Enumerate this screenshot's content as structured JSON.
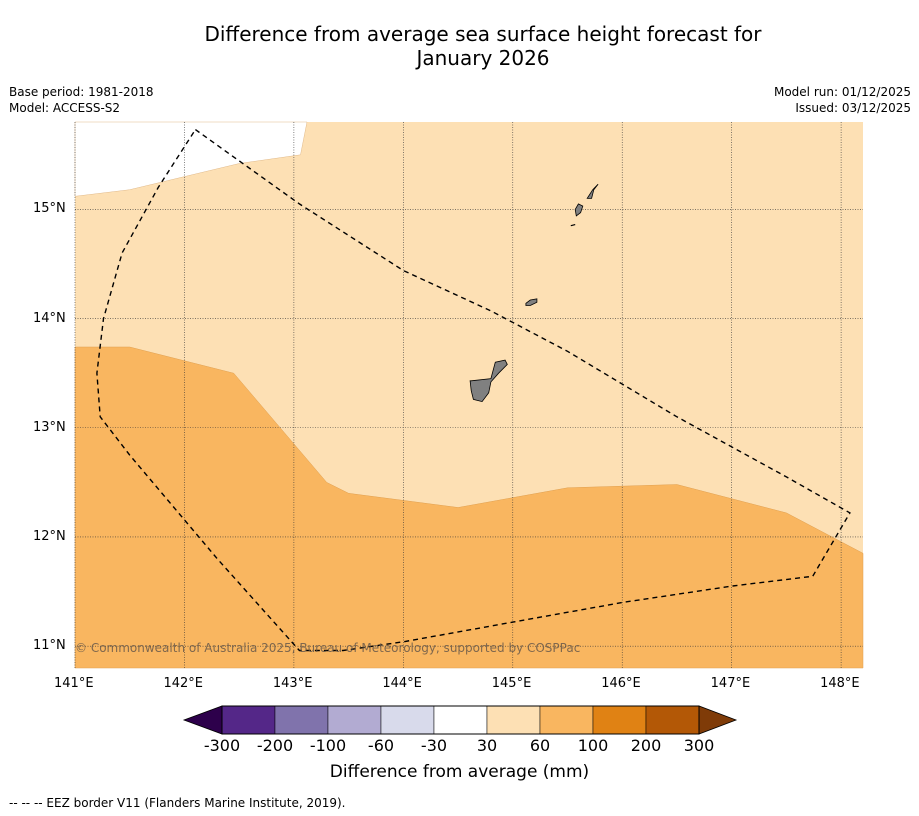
{
  "title_line1": "Difference from average sea surface height forecast for",
  "title_line2": "January 2026",
  "meta_left": {
    "base_period": "Base period: 1981-2018",
    "model": "Model: ACCESS-S2"
  },
  "meta_right": {
    "model_run": "Model run: 01/12/2025",
    "issued": "Issued: 03/12/2025"
  },
  "map": {
    "lon_range": [
      141,
      148.2
    ],
    "lat_range": [
      10.8,
      15.8
    ],
    "lon_ticks": [
      {
        "value": 141,
        "label": "141°E"
      },
      {
        "value": 142,
        "label": "142°E"
      },
      {
        "value": 143,
        "label": "143°E"
      },
      {
        "value": 144,
        "label": "144°E"
      },
      {
        "value": 145,
        "label": "145°E"
      },
      {
        "value": 146,
        "label": "146°E"
      },
      {
        "value": 147,
        "label": "147°E"
      },
      {
        "value": 148,
        "label": "148°E"
      }
    ],
    "lat_ticks": [
      {
        "value": 15,
        "label": "15°N"
      },
      {
        "value": 14,
        "label": "14°N"
      },
      {
        "value": 13,
        "label": "13°N"
      },
      {
        "value": 12,
        "label": "12°N"
      },
      {
        "value": 11,
        "label": "11°N"
      }
    ],
    "colors": {
      "zone_30_60": "#fde0b4",
      "zone_60_100": "#f9b660",
      "land": "#808080",
      "white": "#ffffff"
    },
    "white_region": [
      [
        141,
        15.8
      ],
      [
        141,
        15.12
      ],
      [
        141.5,
        15.18
      ],
      [
        142.5,
        15.42
      ],
      [
        143.06,
        15.5
      ],
      [
        143.12,
        15.8
      ]
    ],
    "zone_60_100_region": [
      [
        141,
        13.74
      ],
      [
        141.5,
        13.74
      ],
      [
        142.45,
        13.5
      ],
      [
        143.3,
        12.5
      ],
      [
        143.5,
        12.4
      ],
      [
        144.5,
        12.27
      ],
      [
        145.5,
        12.45
      ],
      [
        146.5,
        12.48
      ],
      [
        147.5,
        12.22
      ],
      [
        148.2,
        11.85
      ],
      [
        148.2,
        10.8
      ],
      [
        141,
        10.8
      ]
    ],
    "eez_border": [
      [
        142.1,
        15.73
      ],
      [
        143.05,
        15.05
      ],
      [
        144,
        14.44
      ],
      [
        144.8,
        14.07
      ],
      [
        145.5,
        13.7
      ],
      [
        146.5,
        13.1
      ],
      [
        147.5,
        12.55
      ],
      [
        148.08,
        12.22
      ],
      [
        147.74,
        11.64
      ],
      [
        147,
        11.55
      ],
      [
        146,
        11.4
      ],
      [
        145,
        11.22
      ],
      [
        144,
        11.04
      ],
      [
        143.45,
        10.96
      ],
      [
        143.05,
        10.96
      ],
      [
        142.3,
        11.8
      ],
      [
        141.5,
        12.75
      ],
      [
        141.23,
        13.1
      ],
      [
        141.2,
        13.5
      ],
      [
        141.26,
        14
      ],
      [
        141.43,
        14.6
      ],
      [
        141.76,
        15.2
      ],
      [
        142.1,
        15.73
      ]
    ],
    "islands": [
      {
        "name": "guam",
        "points": [
          [
            144.62,
            13.43
          ],
          [
            144.8,
            13.45
          ],
          [
            144.84,
            13.6
          ],
          [
            144.93,
            13.62
          ],
          [
            144.95,
            13.58
          ],
          [
            144.87,
            13.5
          ],
          [
            144.8,
            13.42
          ],
          [
            144.78,
            13.32
          ],
          [
            144.72,
            13.24
          ],
          [
            144.64,
            13.26
          ],
          [
            144.62,
            13.34
          ],
          [
            144.61,
            13.43
          ]
        ]
      },
      {
        "name": "rota",
        "points": [
          [
            145.12,
            14.14
          ],
          [
            145.16,
            14.17
          ],
          [
            145.22,
            14.18
          ],
          [
            145.22,
            14.15
          ],
          [
            145.16,
            14.12
          ],
          [
            145.12,
            14.12
          ]
        ]
      },
      {
        "name": "tinian",
        "points": [
          [
            145.57,
            15.0
          ],
          [
            145.6,
            15.05
          ],
          [
            145.64,
            15.03
          ],
          [
            145.62,
            14.97
          ],
          [
            145.58,
            14.94
          ]
        ]
      },
      {
        "name": "saipan",
        "points": [
          [
            145.68,
            15.1
          ],
          [
            145.73,
            15.18
          ],
          [
            145.78,
            15.23
          ],
          [
            145.74,
            15.18
          ],
          [
            145.72,
            15.1
          ]
        ]
      },
      {
        "name": "aguijan",
        "points": [
          [
            145.53,
            14.85
          ],
          [
            145.57,
            14.86
          ]
        ]
      }
    ]
  },
  "colorbar": {
    "bins": [
      {
        "color": "#2d004b"
      },
      {
        "color": "#542788"
      },
      {
        "color": "#8073ac"
      },
      {
        "color": "#b2abd2"
      },
      {
        "color": "#d8daeb"
      },
      {
        "color": "#ffffff"
      },
      {
        "color": "#fde0b4"
      },
      {
        "color": "#f9b660"
      },
      {
        "color": "#e08214"
      },
      {
        "color": "#b35806"
      },
      {
        "color": "#7f3b08"
      }
    ],
    "tick_labels": [
      "-300",
      "-200",
      "-100",
      "-60",
      "-30",
      "30",
      "60",
      "100",
      "200",
      "300"
    ],
    "label": "Difference from average (mm)"
  },
  "copyright": "© Commonwealth of Australia 2025, Bureau of Meteorology, supported by COSPPac",
  "footnote": "--  --  -- EEZ border V11 (Flanders Marine Institute, 2019)."
}
